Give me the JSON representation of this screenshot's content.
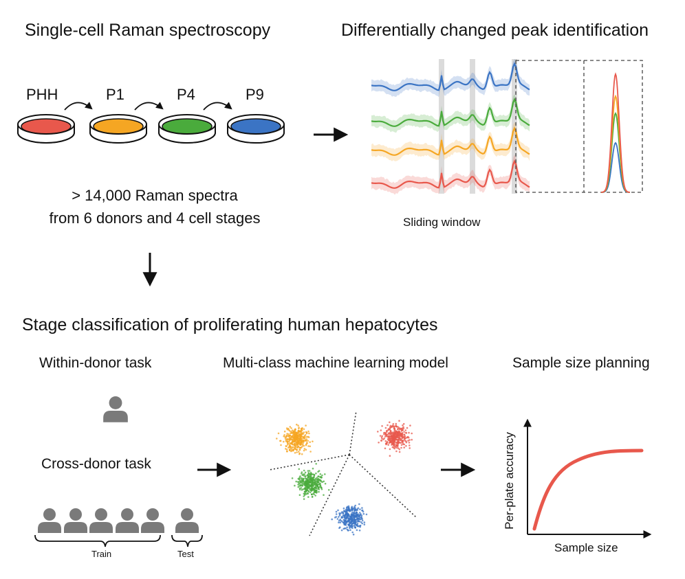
{
  "sections": {
    "raman_title": "Single-cell Raman spectroscopy",
    "peak_title": "Differentially changed peak identification",
    "classification_title": "Stage classification of proliferating human hepatocytes"
  },
  "cell_stages": [
    "PHH",
    "P1",
    "P4",
    "P9"
  ],
  "stats": {
    "line1": "> 14,000 Raman spectra",
    "line2": "from 6 donors and 4 cell stages"
  },
  "sliding_window_label": "Sliding window",
  "tasks": {
    "within_donor": "Within-donor task",
    "cross_donor": "Cross-donor task",
    "train": "Train",
    "test": "Test"
  },
  "ml_model_label": "Multi-class machine learning model",
  "sample_size_planning": {
    "title": "Sample size planning",
    "xlabel": "Sample size",
    "ylabel": "Per-plate accuracy"
  },
  "colors": {
    "phh": "#e8584c",
    "p1": "#f5a623",
    "p4": "#4aab3c",
    "p9": "#3b74c4",
    "curve": "#e8584c",
    "person": "#7a7a7a"
  }
}
